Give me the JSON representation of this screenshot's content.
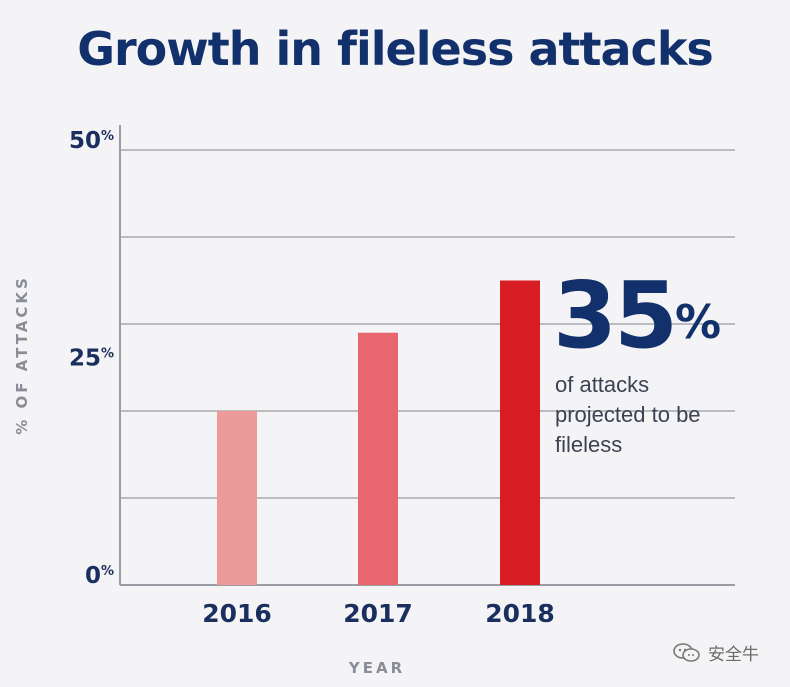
{
  "title": "Growth in fileless attacks",
  "chart_data": {
    "type": "bar",
    "categories": [
      "2016",
      "2017",
      "2018"
    ],
    "values": [
      20,
      29,
      35
    ],
    "colors": [
      "#ec9a9a",
      "#e8676e",
      "#d81e24"
    ],
    "xlabel": "YEAR",
    "ylabel": "% OF ATTACKS",
    "ylim": [
      0,
      50
    ],
    "yticks": [
      {
        "num": "0",
        "unit": "%"
      },
      {
        "num": "25",
        "unit": "%"
      },
      {
        "num": "50",
        "unit": "%"
      }
    ],
    "grid": true,
    "annotation": {
      "value": "35",
      "unit": "%",
      "text": "of attacks projected to be fileless",
      "category": "2018"
    }
  },
  "watermark": {
    "label": "安全牛",
    "icon": "wechat-icon"
  },
  "colors": {
    "title": "#12306b",
    "axis": "#9a9ca4",
    "grid": "#a8aab0"
  }
}
